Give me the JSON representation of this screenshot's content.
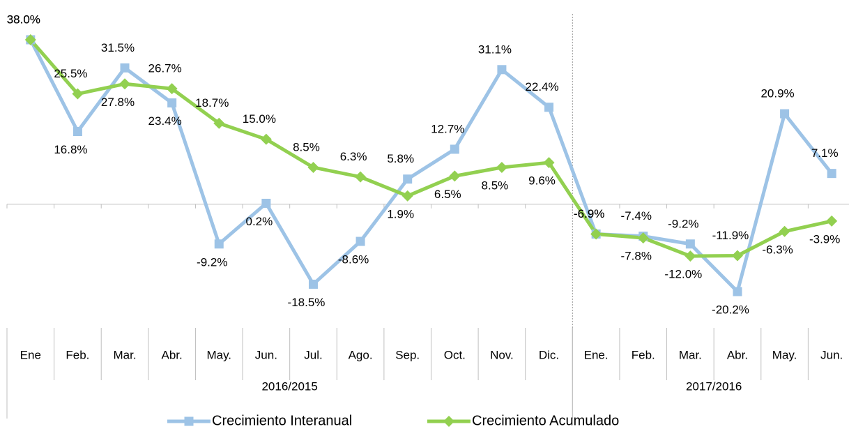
{
  "chart_data": {
    "type": "line",
    "groups": [
      {
        "label": "2016/2015",
        "categories": [
          "Ene",
          "Feb.",
          "Mar.",
          "Abr.",
          "May.",
          "Jun.",
          "Jul.",
          "Ago.",
          "Sep.",
          "Oct.",
          "Nov.",
          "Dic."
        ]
      },
      {
        "label": "2017/2016",
        "categories": [
          "Ene.",
          "Feb.",
          "Mar.",
          "Abr.",
          "May.",
          "Jun."
        ]
      }
    ],
    "series": [
      {
        "name": "Crecimiento Interanual",
        "color": "#9DC3E6",
        "marker": "square",
        "values": [
          38.0,
          16.8,
          31.5,
          23.4,
          -9.2,
          0.2,
          -18.5,
          -8.6,
          5.8,
          12.7,
          31.1,
          22.4,
          -6.9,
          -7.4,
          -9.2,
          -20.2,
          20.9,
          7.1
        ],
        "value_labels": [
          "38.0%",
          "16.8%",
          "31.5%",
          "23.4%",
          "-9.2%",
          "0.2%",
          "-18.5%",
          "-8.6%",
          "5.8%",
          "12.7%",
          "31.1%",
          "22.4%",
          "-6.9%",
          "-7.4%",
          "-9.2%",
          "-20.2%",
          "20.9%",
          "7.1%"
        ]
      },
      {
        "name": "Crecimiento Acumulado",
        "color": "#92D050",
        "marker": "diamond",
        "values": [
          38.0,
          25.5,
          27.8,
          26.7,
          18.7,
          15.0,
          8.5,
          6.3,
          1.9,
          6.5,
          8.5,
          9.6,
          -6.9,
          -7.8,
          -12.0,
          -11.9,
          -6.3,
          -3.9
        ],
        "value_labels": [
          "38.0%",
          "25.5%",
          "27.8%",
          "26.7%",
          "18.7%",
          "15.0%",
          "8.5%",
          "6.3%",
          "1.9%",
          "6.5%",
          "8.5%",
          "9.6%",
          "-6.9%",
          "-7.8%",
          "-12.0%",
          "-11.9%",
          "-6.3%",
          "-3.9%"
        ]
      }
    ]
  }
}
